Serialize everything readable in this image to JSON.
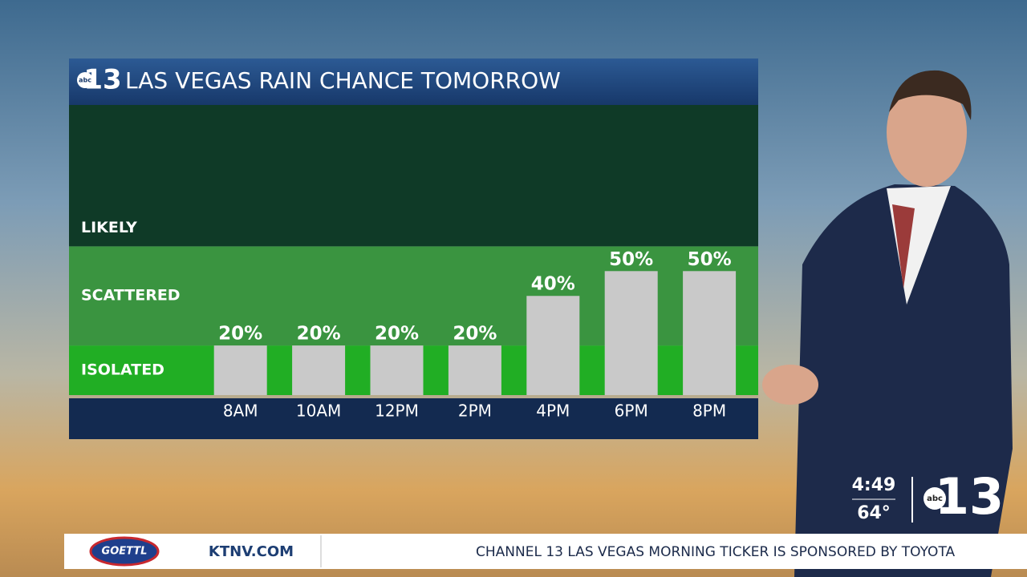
{
  "chart_data": {
    "type": "bar",
    "title": "LAS VEGAS RAIN CHANCE TOMORROW",
    "categories": [
      "8AM",
      "10AM",
      "12PM",
      "2PM",
      "4PM",
      "6PM",
      "8PM"
    ],
    "values": [
      20,
      20,
      20,
      20,
      40,
      50,
      50
    ],
    "value_labels": [
      "20%",
      "20%",
      "20%",
      "20%",
      "40%",
      "50%",
      "50%"
    ],
    "color": "#c9c9c9",
    "ylim": [
      0,
      117
    ],
    "bands": [
      {
        "label": "ISOLATED",
        "from": 0,
        "to": 20,
        "color": "#21ae24"
      },
      {
        "label": "SCATTERED",
        "from": 20,
        "to": 60,
        "color": "#3a9440"
      },
      {
        "label": "LIKELY",
        "from": 60,
        "to": 117,
        "color": "#0f3a27"
      }
    ]
  },
  "logo": {
    "network": "abc",
    "channel": "13"
  },
  "status": {
    "time": "4:49",
    "temperature": "64°"
  },
  "ticker": {
    "sponsor_logo": "GOETTL",
    "site": "KTNV.COM",
    "message": "CHANNEL 13 LAS VEGAS MORNING TICKER IS SPONSORED BY TOYOTA"
  }
}
